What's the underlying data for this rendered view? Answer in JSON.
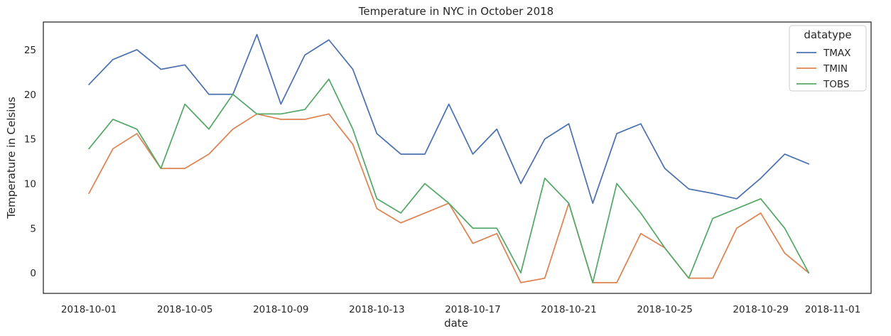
{
  "chart_data": {
    "type": "line",
    "title": "Temperature in NYC in October 2018",
    "xlabel": "date",
    "ylabel": "Temperature in Celsius",
    "x": [
      "2018-10-01",
      "2018-10-02",
      "2018-10-03",
      "2018-10-04",
      "2018-10-05",
      "2018-10-06",
      "2018-10-07",
      "2018-10-08",
      "2018-10-09",
      "2018-10-10",
      "2018-10-11",
      "2018-10-12",
      "2018-10-13",
      "2018-10-14",
      "2018-10-15",
      "2018-10-16",
      "2018-10-17",
      "2018-10-18",
      "2018-10-19",
      "2018-10-20",
      "2018-10-21",
      "2018-10-22",
      "2018-10-23",
      "2018-10-24",
      "2018-10-25",
      "2018-10-26",
      "2018-10-27",
      "2018-10-28",
      "2018-10-29",
      "2018-10-30",
      "2018-10-31"
    ],
    "xticks": [
      "2018-10-01",
      "2018-10-05",
      "2018-10-09",
      "2018-10-13",
      "2018-10-17",
      "2018-10-21",
      "2018-10-25",
      "2018-10-29",
      "2018-11-01"
    ],
    "xlim": [
      "2018-09-29T02:24",
      "2018-11-02T14:24"
    ],
    "yticks": [
      0,
      5,
      10,
      15,
      20,
      25
    ],
    "ylim": [
      -2.3,
      28.1
    ],
    "grid": false,
    "legend": {
      "title": "datatype",
      "placement": "top-right"
    },
    "series": [
      {
        "name": "TMAX",
        "color": "#4c72b0",
        "values": [
          21.1,
          23.9,
          25.0,
          22.8,
          23.3,
          20.0,
          20.0,
          26.7,
          18.9,
          24.4,
          26.1,
          22.8,
          15.6,
          13.3,
          13.3,
          18.9,
          13.3,
          16.1,
          10.0,
          15.0,
          16.7,
          7.8,
          15.6,
          16.7,
          11.7,
          9.4,
          8.9,
          8.3,
          10.6,
          13.3,
          12.2
        ]
      },
      {
        "name": "TMIN",
        "color": "#dd8452",
        "values": [
          8.9,
          13.9,
          15.6,
          11.7,
          11.7,
          13.3,
          16.1,
          17.8,
          17.2,
          17.2,
          17.8,
          14.4,
          7.2,
          5.6,
          6.7,
          7.8,
          3.3,
          4.4,
          -1.1,
          -0.6,
          7.8,
          -1.1,
          -1.1,
          4.4,
          2.8,
          -0.6,
          -0.6,
          5.0,
          6.7,
          2.2,
          0.0
        ]
      },
      {
        "name": "TOBS",
        "color": "#55a868",
        "values": [
          13.9,
          17.2,
          16.1,
          11.7,
          18.9,
          16.1,
          20.0,
          17.8,
          17.8,
          18.3,
          21.7,
          16.1,
          8.3,
          6.7,
          10.0,
          7.8,
          5.0,
          5.0,
          0.0,
          10.6,
          7.8,
          -1.1,
          10.0,
          6.7,
          2.8,
          -0.6,
          6.1,
          7.2,
          8.3,
          5.0,
          0.0
        ]
      }
    ]
  }
}
